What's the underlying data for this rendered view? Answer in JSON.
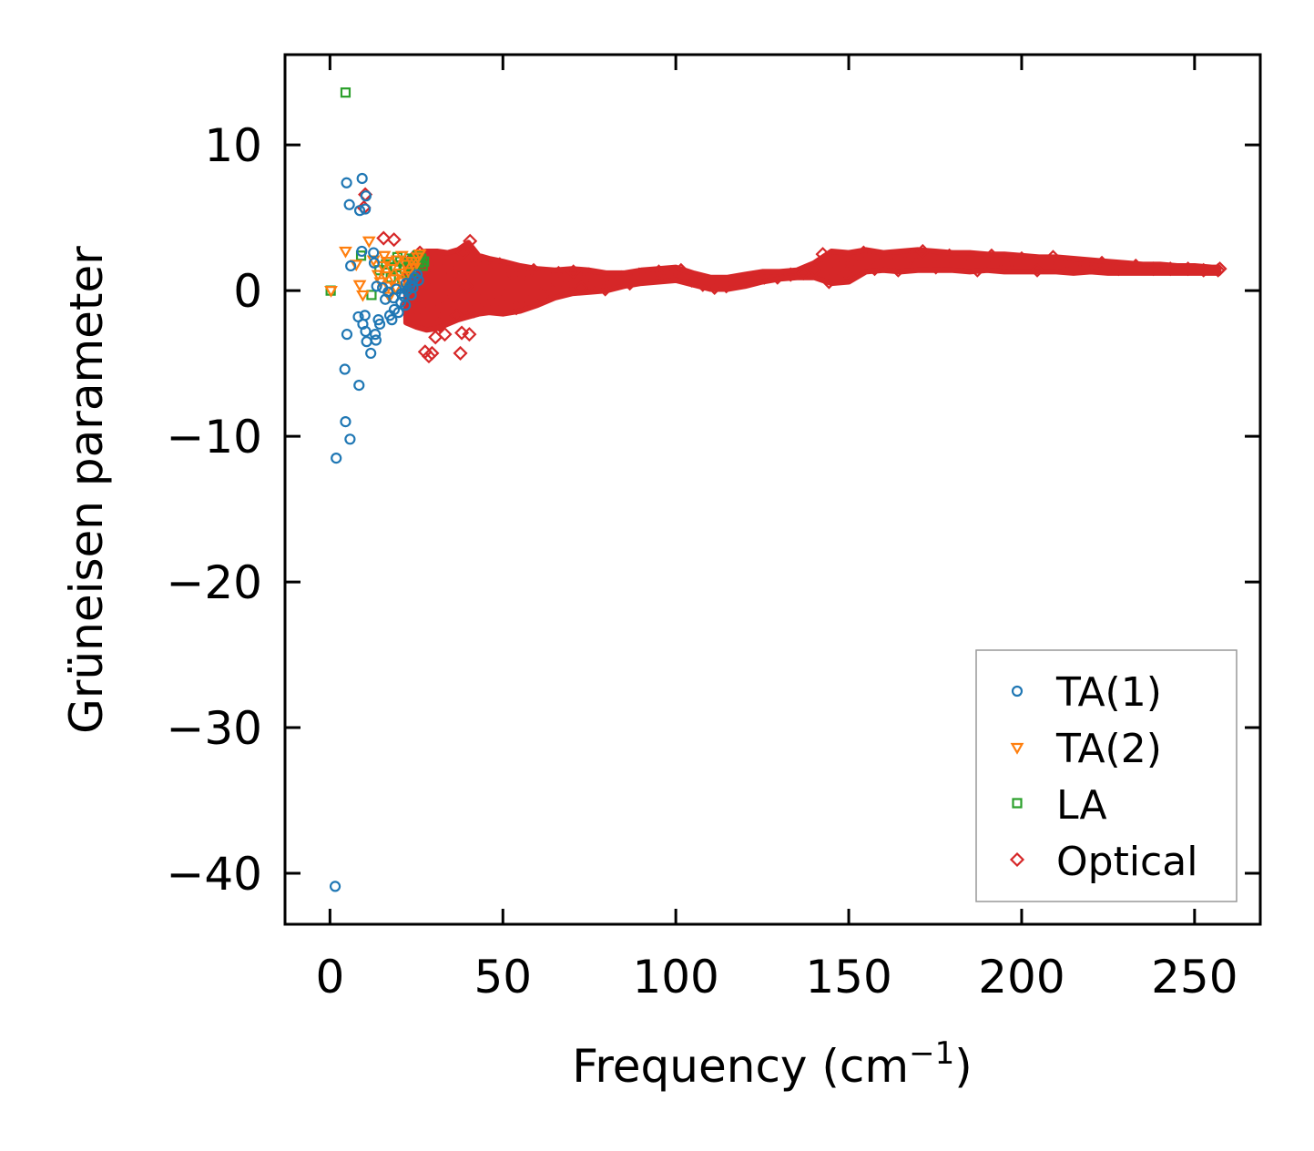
{
  "chart_data": {
    "type": "scatter",
    "title": "",
    "xlabel": "Frequency (cm",
    "xlabel_sup": "−1",
    "xlabel_close": ")",
    "ylabel": "Grüneisen parameter",
    "xlim": [
      -13,
      269
    ],
    "ylim": [
      -43.5,
      16.2
    ],
    "xticks": [
      0,
      50,
      100,
      150,
      200,
      250
    ],
    "yticks": [
      10,
      0,
      -10,
      -20,
      -30,
      -40
    ],
    "xtick_labels": [
      "0",
      "50",
      "100",
      "150",
      "200",
      "250"
    ],
    "ytick_labels": [
      "10",
      "0",
      "−10",
      "−20",
      "−30",
      "−40"
    ],
    "grid": false,
    "legend_position": "bottom-right",
    "series": [
      {
        "name": "TA(1)",
        "marker": "circle",
        "color": "#1f77b4",
        "points": [
          [
            1.5,
            -40.9
          ],
          [
            1.8,
            -11.5
          ],
          [
            4.5,
            -9.0
          ],
          [
            5.8,
            -10.2
          ],
          [
            4.3,
            -5.4
          ],
          [
            8.4,
            -6.5
          ],
          [
            4.9,
            -3.0
          ],
          [
            4.8,
            7.4
          ],
          [
            9.3,
            7.7
          ],
          [
            5.6,
            5.9
          ],
          [
            8.6,
            5.5
          ],
          [
            10.2,
            5.6
          ],
          [
            10.4,
            6.5
          ],
          [
            9.2,
            2.7
          ],
          [
            12.6,
            2.6
          ],
          [
            6.0,
            1.7
          ],
          [
            8.2,
            -1.8
          ],
          [
            9.5,
            -2.3
          ],
          [
            10.3,
            -2.8
          ],
          [
            10.6,
            -3.5
          ],
          [
            11.8,
            -4.3
          ],
          [
            13.1,
            -3.0
          ],
          [
            13.3,
            -3.4
          ],
          [
            14.4,
            -2.3
          ],
          [
            14.0,
            -2.0
          ],
          [
            10.1,
            -1.7
          ],
          [
            12.8,
            1.9
          ],
          [
            13.5,
            0.3
          ],
          [
            15.2,
            0.2
          ],
          [
            16.8,
            -0.1
          ],
          [
            17.9,
            -2.0
          ],
          [
            18.6,
            -1.3
          ],
          [
            19.8,
            -1.5
          ],
          [
            20.5,
            -0.8
          ],
          [
            21.4,
            -0.4
          ],
          [
            22.3,
            0.0
          ],
          [
            23.1,
            0.3
          ],
          [
            23.8,
            0.6
          ],
          [
            24.5,
            0.9
          ],
          [
            25.2,
            1.1
          ],
          [
            18.4,
            -0.5
          ],
          [
            19.2,
            0.1
          ],
          [
            20.7,
            -0.2
          ],
          [
            22.0,
            0.5
          ],
          [
            24.0,
            0.2
          ],
          [
            25.6,
            0.7
          ],
          [
            17.3,
            -1.7
          ],
          [
            16.0,
            -0.6
          ],
          [
            21.8,
            -1.0
          ],
          [
            23.5,
            -0.3
          ]
        ]
      },
      {
        "name": "TA(2)",
        "marker": "triangle-down",
        "color": "#ff7f0e",
        "points": [
          [
            0.3,
            0.0
          ],
          [
            4.5,
            2.7
          ],
          [
            11.3,
            3.4
          ],
          [
            9.5,
            -0.3
          ],
          [
            8.6,
            0.4
          ],
          [
            7.6,
            1.8
          ],
          [
            13.9,
            1.1
          ],
          [
            15.2,
            1.7
          ],
          [
            16.1,
            1.0
          ],
          [
            16.9,
            0.3
          ],
          [
            17.7,
            1.5
          ],
          [
            18.5,
            0.8
          ],
          [
            19.4,
            2.1
          ],
          [
            20.2,
            1.2
          ],
          [
            21.0,
            0.6
          ],
          [
            21.9,
            1.8
          ],
          [
            22.7,
            1.3
          ],
          [
            23.6,
            2.0
          ],
          [
            24.4,
            1.6
          ],
          [
            25.3,
            2.3
          ],
          [
            26.0,
            2.5
          ],
          [
            15.7,
            2.4
          ],
          [
            17.2,
            -0.4
          ],
          [
            19.0,
            0.2
          ],
          [
            20.8,
            2.4
          ],
          [
            12.6,
            2.1
          ],
          [
            14.6,
            0.6
          ],
          [
            16.5,
            2.0
          ],
          [
            22.2,
            1.0
          ],
          [
            24.8,
            2.0
          ]
        ]
      },
      {
        "name": "LA",
        "marker": "square",
        "color": "#2ca02c",
        "points": [
          [
            4.5,
            13.6
          ],
          [
            0.2,
            0.0
          ],
          [
            9.0,
            2.4
          ],
          [
            12.0,
            -0.3
          ],
          [
            14.3,
            1.4
          ],
          [
            16.2,
            1.8
          ],
          [
            17.6,
            0.9
          ],
          [
            18.9,
            1.6
          ],
          [
            20.3,
            2.0
          ],
          [
            21.6,
            1.5
          ],
          [
            22.9,
            2.2
          ],
          [
            24.1,
            2.1
          ],
          [
            25.3,
            2.4
          ],
          [
            26.4,
            2.2
          ],
          [
            27.2,
            2.0
          ],
          [
            26.8,
            1.7
          ],
          [
            23.5,
            1.2
          ],
          [
            20.9,
            0.7
          ],
          [
            19.5,
            2.3
          ],
          [
            25.8,
            1.9
          ]
        ]
      },
      {
        "name": "Optical",
        "marker": "diamond",
        "color": "#d62728",
        "points": [
          [
            10.2,
            6.6
          ],
          [
            15.5,
            3.6
          ],
          [
            18.5,
            3.5
          ],
          [
            9.8,
            5.7
          ],
          [
            24.2,
            2.3
          ],
          [
            26.0,
            2.6
          ],
          [
            27.5,
            -4.2
          ],
          [
            28.6,
            -4.5
          ],
          [
            29.5,
            -4.3
          ],
          [
            37.7,
            -4.3
          ],
          [
            40.3,
            -3.0
          ],
          [
            38.1,
            -2.9
          ],
          [
            33.2,
            -3.0
          ],
          [
            30.5,
            -3.2
          ],
          [
            31.8,
            -2.4
          ],
          [
            24.1,
            -2.0
          ],
          [
            22.4,
            -0.9
          ],
          [
            25.7,
            -1.2
          ],
          [
            40.5,
            3.4
          ],
          [
            27.8,
            0.5
          ],
          [
            29.0,
            1.8
          ],
          [
            30.6,
            -1.5
          ],
          [
            32.4,
            2.1
          ],
          [
            34.2,
            -0.8
          ],
          [
            35.8,
            1.2
          ],
          [
            36.6,
            -1.7
          ],
          [
            38.4,
            2.6
          ],
          [
            39.5,
            0.3
          ],
          [
            41.7,
            -1.4
          ],
          [
            42.6,
            2.0
          ],
          [
            44.3,
            -0.6
          ],
          [
            45.8,
            1.5
          ],
          [
            47.5,
            -1.0
          ],
          [
            49.1,
            1.8
          ],
          [
            50.6,
            -0.4
          ],
          [
            52.2,
            1.3
          ],
          [
            53.9,
            -1.2
          ],
          [
            55.4,
            1.0
          ],
          [
            57.2,
            -0.8
          ],
          [
            58.9,
            1.4
          ],
          [
            60.5,
            -0.2
          ],
          [
            62.3,
            1.1
          ],
          [
            64.0,
            0.0
          ],
          [
            66.1,
            1.2
          ],
          [
            68.2,
            0.3
          ],
          [
            70.4,
            1.3
          ],
          [
            72.6,
            0.2
          ],
          [
            74.9,
            1.1
          ],
          [
            77.3,
            0.6
          ],
          [
            79.6,
            0.1
          ],
          [
            81.8,
            0.7
          ],
          [
            84.2,
            0.9
          ],
          [
            86.7,
            0.5
          ],
          [
            89.4,
            1.1
          ],
          [
            92.0,
            0.9
          ],
          [
            95.1,
            1.3
          ],
          [
            98.2,
            1.1
          ],
          [
            101.5,
            1.4
          ],
          [
            104.6,
            0.7
          ],
          [
            107.8,
            0.4
          ],
          [
            111.2,
            0.2
          ],
          [
            114.6,
            0.3
          ],
          [
            118.3,
            0.6
          ],
          [
            122.0,
            0.8
          ],
          [
            125.6,
            0.9
          ],
          [
            129.4,
            0.9
          ],
          [
            133.2,
            1.1
          ],
          [
            136.9,
            1.2
          ],
          [
            140.1,
            1.4
          ],
          [
            142.5,
            2.5
          ],
          [
            144.3,
            0.6
          ],
          [
            146.6,
            1.6
          ],
          [
            149.0,
            1.3
          ],
          [
            151.4,
            2.0
          ],
          [
            154.3,
            2.6
          ],
          [
            157.5,
            1.5
          ],
          [
            160.8,
            2.2
          ],
          [
            164.3,
            1.4
          ],
          [
            168.0,
            2.3
          ],
          [
            171.4,
            2.7
          ],
          [
            175.2,
            1.6
          ],
          [
            179.1,
            2.4
          ],
          [
            183.0,
            2.1
          ],
          [
            187.2,
            1.4
          ],
          [
            191.3,
            2.4
          ],
          [
            195.6,
            1.7
          ],
          [
            200.0,
            2.2
          ],
          [
            204.5,
            1.4
          ],
          [
            209.1,
            2.3
          ],
          [
            213.6,
            1.9
          ],
          [
            218.4,
            1.7
          ],
          [
            223.2,
            1.9
          ],
          [
            228.0,
            1.5
          ],
          [
            233.0,
            1.7
          ],
          [
            238.1,
            1.5
          ],
          [
            243.0,
            1.5
          ],
          [
            248.1,
            1.5
          ],
          [
            252.6,
            1.4
          ],
          [
            256.8,
            1.4
          ],
          [
            257.3,
            1.5
          ]
        ],
        "band": {
          "x": [
            22,
            25,
            28,
            31,
            34,
            37,
            40,
            43,
            46,
            50,
            55,
            60,
            65,
            70,
            75,
            80,
            85,
            90,
            95,
            100,
            105,
            110,
            115,
            120,
            125,
            130,
            135,
            140,
            145,
            150,
            155,
            160,
            165,
            170,
            175,
            180,
            185,
            190,
            195,
            200,
            205,
            210,
            215,
            220,
            225,
            230,
            235,
            240,
            245,
            250,
            255,
            257
          ],
          "upper": [
            2.1,
            2.6,
            2.7,
            2.7,
            2.6,
            2.8,
            3.3,
            2.4,
            2.2,
            2.0,
            1.7,
            1.5,
            1.4,
            1.5,
            1.4,
            1.2,
            1.2,
            1.4,
            1.5,
            1.6,
            1.2,
            0.9,
            0.9,
            1.1,
            1.3,
            1.3,
            1.4,
            1.9,
            2.7,
            2.6,
            2.8,
            2.6,
            2.7,
            2.8,
            2.7,
            2.6,
            2.6,
            2.5,
            2.5,
            2.4,
            2.3,
            2.3,
            2.2,
            2.1,
            2.0,
            1.9,
            1.8,
            1.8,
            1.7,
            1.7,
            1.6,
            1.6
          ],
          "lower": [
            -2.2,
            -2.5,
            -2.7,
            -2.6,
            -2.3,
            -2.0,
            -1.8,
            -1.6,
            -1.5,
            -1.6,
            -1.4,
            -1.0,
            -0.5,
            -0.2,
            -0.1,
            0.0,
            0.3,
            0.5,
            0.6,
            0.7,
            0.4,
            0.1,
            0.1,
            0.3,
            0.6,
            0.8,
            0.9,
            0.9,
            0.5,
            0.6,
            1.3,
            1.4,
            1.3,
            1.4,
            1.4,
            1.4,
            1.3,
            1.4,
            1.3,
            1.3,
            1.3,
            1.3,
            1.2,
            1.3,
            1.2,
            1.2,
            1.2,
            1.2,
            1.2,
            1.2,
            1.2,
            1.2
          ]
        }
      }
    ]
  }
}
